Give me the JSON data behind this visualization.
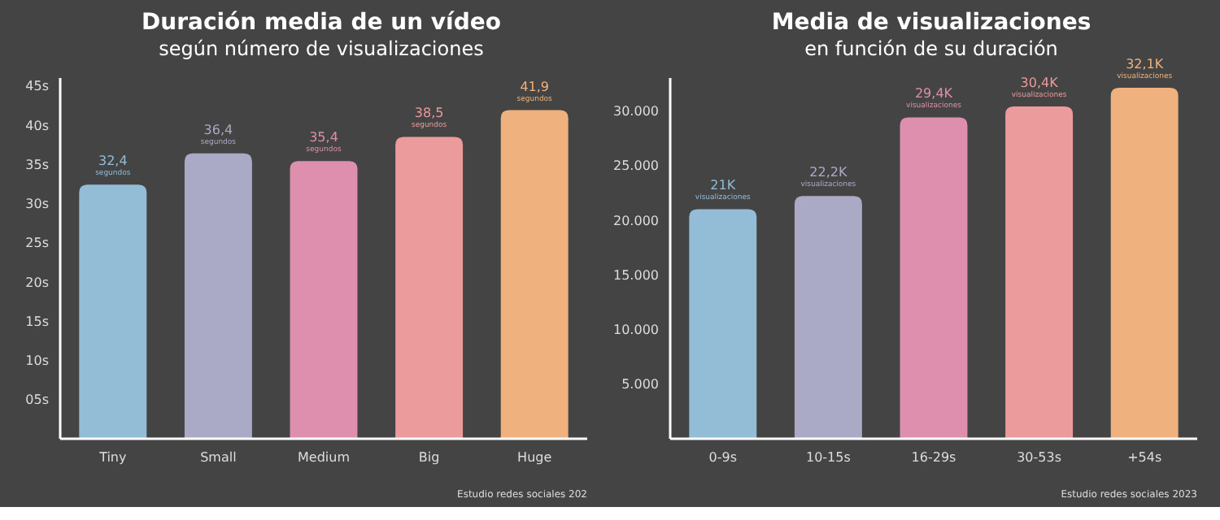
{
  "chart_data": [
    {
      "type": "bar",
      "title": "Duración media de un vídeo",
      "subtitle": "según número de visualizaciones",
      "categories": [
        "Tiny",
        "Small",
        "Medium",
        "Big",
        "Huge"
      ],
      "values": [
        32.4,
        36.4,
        35.4,
        38.5,
        41.9
      ],
      "colors": [
        "#93bcd6",
        "#aaaac6",
        "#de8fae",
        "#eb9b9b",
        "#efb27f"
      ],
      "value_labels": [
        "32,4$_{segundos}$",
        "36,4$_{segundos}$",
        "35,4$_{segundos}$",
        "38,5$_{segundos}$",
        "41,9$_{segundos}$"
      ],
      "ylim": [
        0,
        46
      ],
      "yticks": [
        {
          "value": 5,
          "label": "05s"
        },
        {
          "value": 10,
          "label": "10s"
        },
        {
          "value": 15,
          "label": "15s"
        },
        {
          "value": 20,
          "label": "20s"
        },
        {
          "value": 25,
          "label": "25s"
        },
        {
          "value": 30,
          "label": "30s"
        },
        {
          "value": 35,
          "label": "35s"
        },
        {
          "value": 40,
          "label": "40s"
        },
        {
          "value": 45,
          "label": "45s"
        }
      ],
      "grid": false,
      "annotations": [
        "Estudio redes sociales 202"
      ]
    },
    {
      "type": "bar",
      "title": "Media de visualizaciones",
      "subtitle": "en función de su duración",
      "categories": [
        "0-9s",
        "10-15s",
        "16-29s",
        "30-53s",
        "+54s"
      ],
      "values": [
        21000,
        22200,
        29400,
        30400,
        32100
      ],
      "colors": [
        "#93bcd6",
        "#aaaac6",
        "#de8fae",
        "#eb9b9b",
        "#efb27f"
      ],
      "value_labels": [
        "21K$_{visualizaciones}$",
        "22,2K$_{visualizaciones}$",
        "29,4K$_{visualizaciones}$",
        "30,4K$_{visualizaciones}$",
        "32,1K$_{visualizaciones}$"
      ],
      "ylim": [
        0,
        33000
      ],
      "yticks": [
        {
          "value": 5000,
          "label": "5.000"
        },
        {
          "value": 10000,
          "label": "10.000"
        },
        {
          "value": 15000,
          "label": "15.000"
        },
        {
          "value": 20000,
          "label": "20.000"
        },
        {
          "value": 25000,
          "label": "25.000"
        },
        {
          "value": 30000,
          "label": "30.000"
        }
      ],
      "grid": false,
      "annotations": [
        "Estudio redes sociales 2023"
      ]
    }
  ]
}
